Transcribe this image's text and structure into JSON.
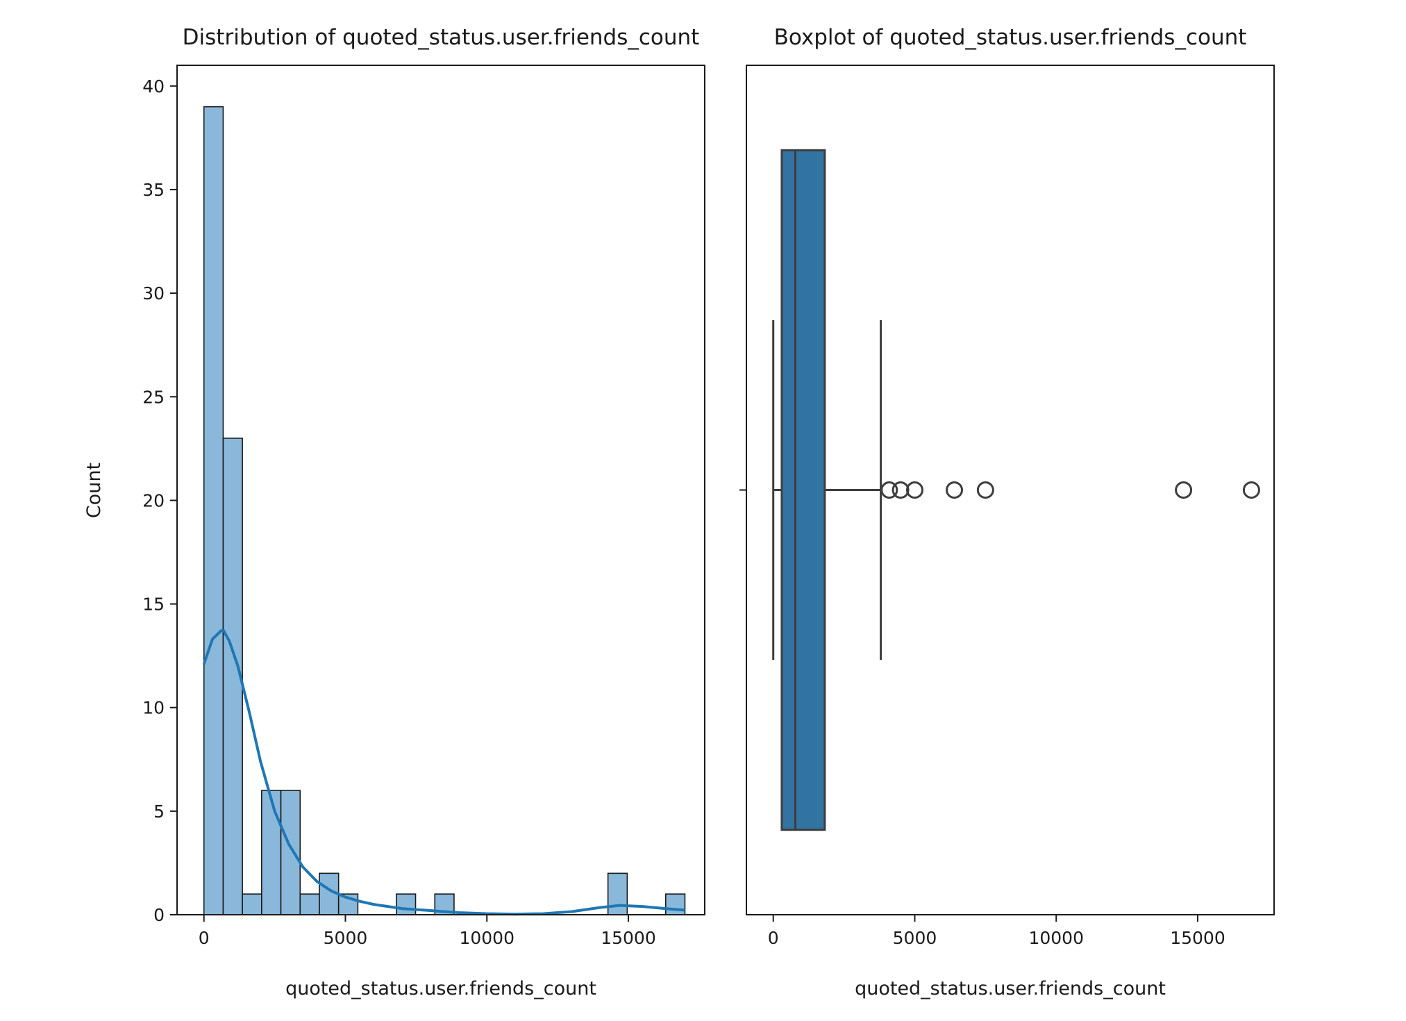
{
  "chart_data": [
    {
      "type": "bar",
      "title": "Distribution of quoted_status.user.friends_count",
      "xlabel": "quoted_status.user.friends_count",
      "ylabel": "Count",
      "xlim": [
        -950,
        17700
      ],
      "ylim": [
        0,
        41
      ],
      "xticks": [
        0,
        5000,
        10000,
        15000
      ],
      "yticks": [
        0,
        5,
        10,
        15,
        20,
        25,
        30,
        35,
        40
      ],
      "bin_start": 0,
      "bin_width": 680,
      "values": [
        39,
        23,
        1,
        6,
        6,
        1,
        2,
        1,
        0,
        0,
        1,
        0,
        1,
        0,
        0,
        0,
        0,
        0,
        0,
        0,
        0,
        2,
        0,
        0,
        1
      ],
      "bar_color": "#8ab8da",
      "edge_color": "#1a1a1a",
      "kde": {
        "color": "#1f77b4",
        "x": [
          0,
          300,
          600,
          700,
          900,
          1200,
          1600,
          2000,
          2500,
          3000,
          3500,
          4000,
          4500,
          5000,
          5500,
          6000,
          7000,
          8000,
          9000,
          10000,
          11000,
          12000,
          13000,
          14000,
          14700,
          15500,
          16300,
          17000
        ],
        "y": [
          12.1,
          13.3,
          13.7,
          13.7,
          13.2,
          12.0,
          9.8,
          7.4,
          5.0,
          3.4,
          2.3,
          1.6,
          1.15,
          0.85,
          0.65,
          0.5,
          0.3,
          0.2,
          0.1,
          0.05,
          0.03,
          0.05,
          0.15,
          0.35,
          0.45,
          0.4,
          0.3,
          0.22
        ]
      }
    },
    {
      "type": "box",
      "title": "Boxplot of quoted_status.user.friends_count",
      "xlabel": "quoted_status.user.friends_count",
      "ylabel": "",
      "xlim": [
        -950,
        17700
      ],
      "xticks": [
        0,
        5000,
        10000,
        15000
      ],
      "whisker_low": 0,
      "q1": 300,
      "median": 780,
      "q3": 1820,
      "whisker_high": 3800,
      "outliers": [
        4100,
        4500,
        5000,
        6400,
        7500,
        14500,
        16900
      ],
      "box_color": "#3274a1",
      "line_color": "#3d3d3d"
    }
  ]
}
